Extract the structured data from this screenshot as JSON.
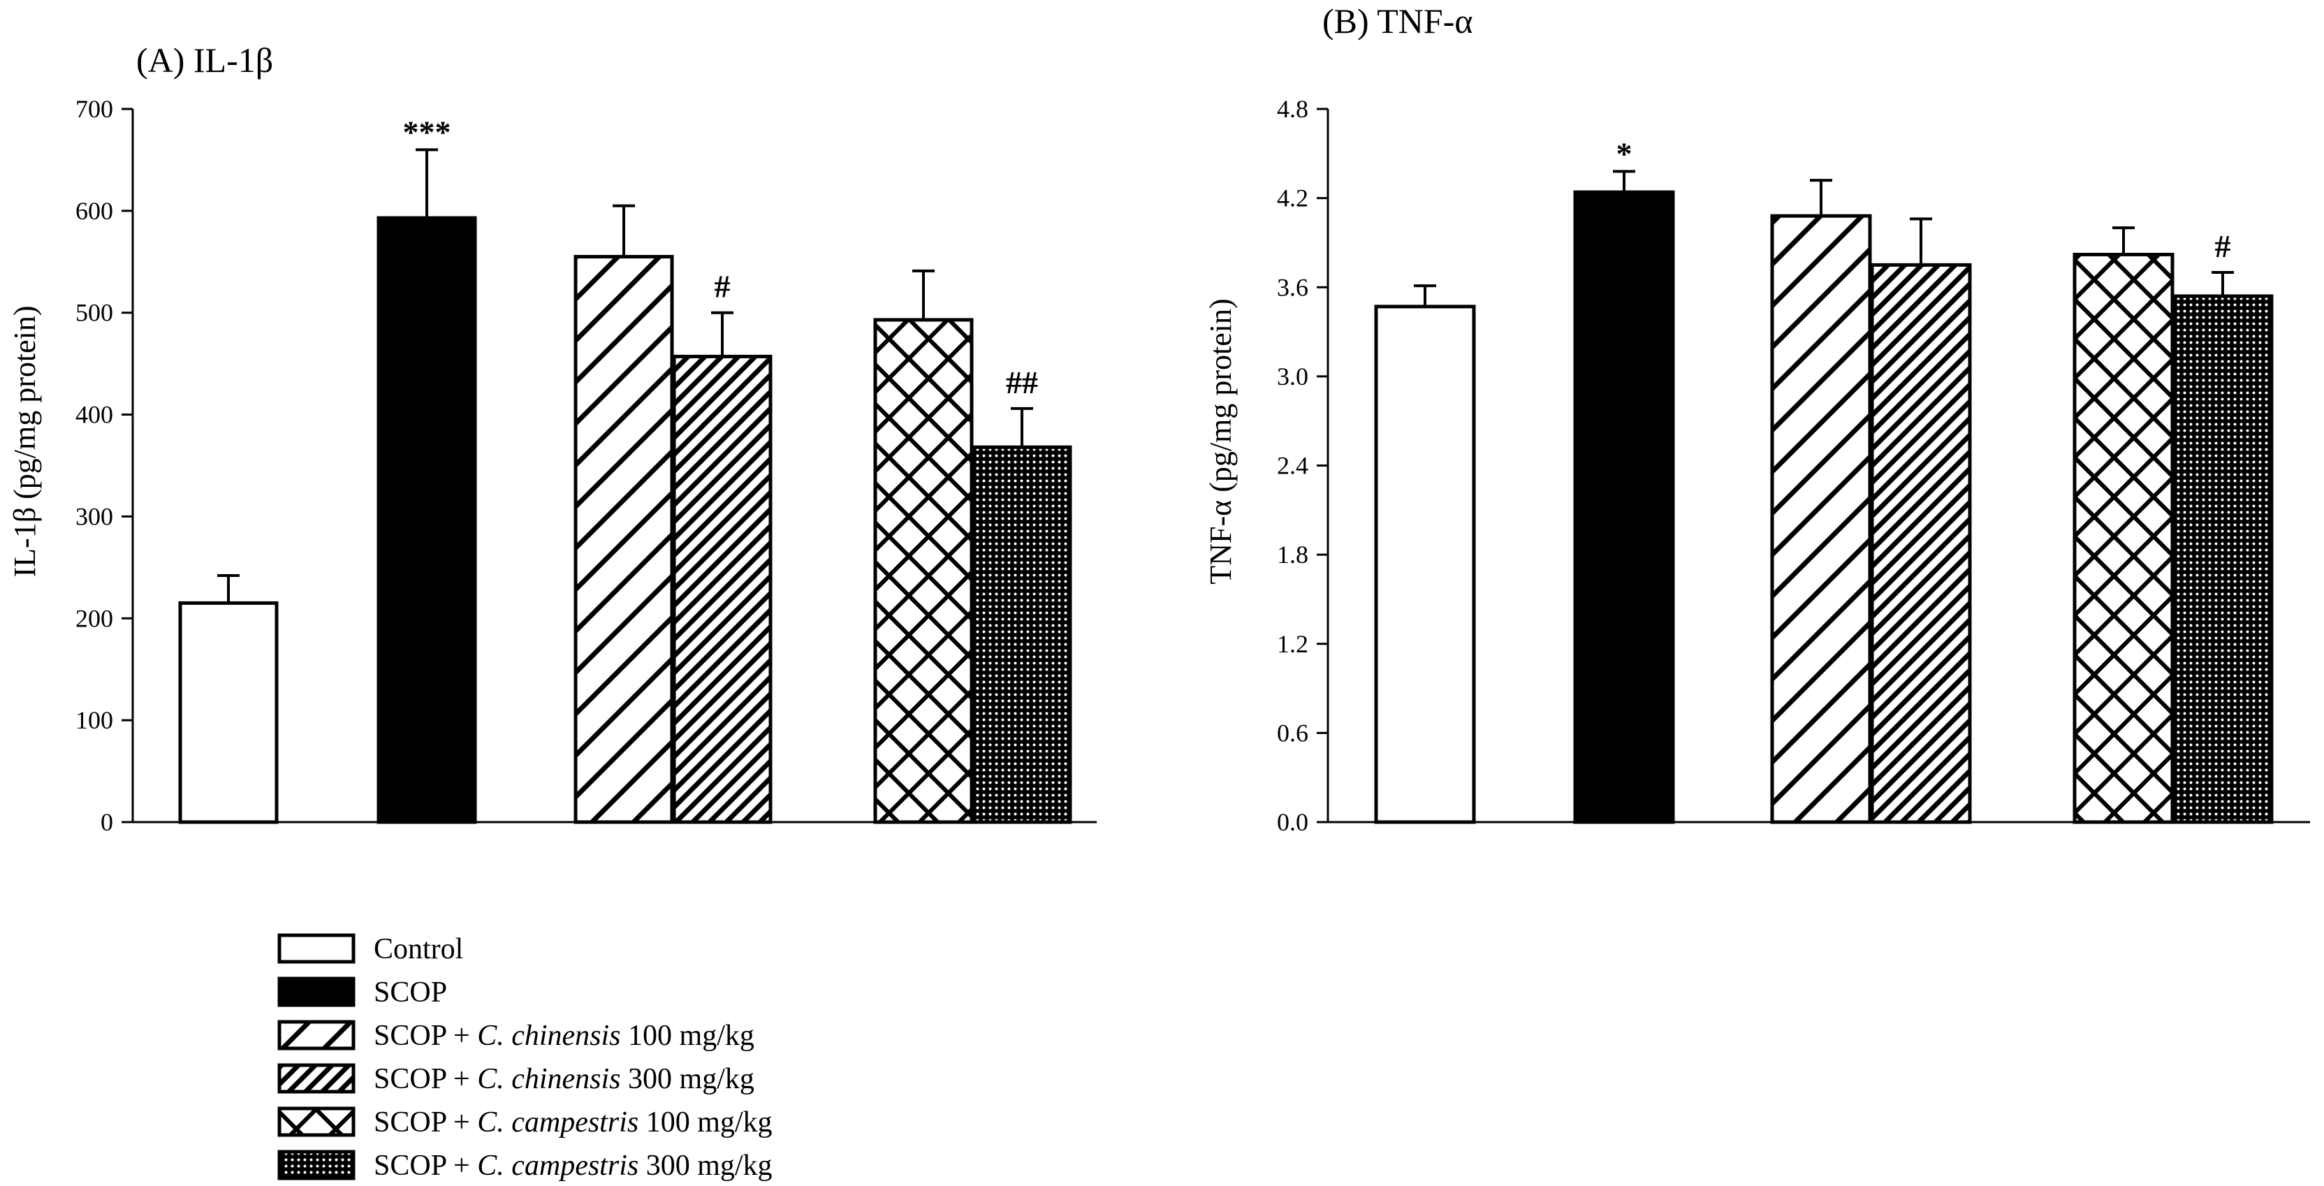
{
  "series_styles": [
    {
      "id": "control",
      "fill": "white"
    },
    {
      "id": "scop",
      "fill": "black"
    },
    {
      "id": "chin100",
      "fill": "diag-wide"
    },
    {
      "id": "chin300",
      "fill": "diag-dense"
    },
    {
      "id": "camp100",
      "fill": "crosshatch"
    },
    {
      "id": "camp300",
      "fill": "dots"
    }
  ],
  "legend": [
    {
      "pre": "Control",
      "italic": "",
      "post": ""
    },
    {
      "pre": "SCOP",
      "italic": "",
      "post": ""
    },
    {
      "pre": "SCOP + ",
      "italic": "C. chinensis",
      "post": " 100 mg/kg"
    },
    {
      "pre": "SCOP + ",
      "italic": "C. chinensis",
      "post": " 300 mg/kg"
    },
    {
      "pre": "SCOP + ",
      "italic": "C. campestris",
      "post": " 100 mg/kg"
    },
    {
      "pre": "SCOP + ",
      "italic": "C. campestris",
      "post": " 300 mg/kg"
    }
  ],
  "chart_data": [
    {
      "type": "bar",
      "title": "(A) IL-1β",
      "xlabel": "",
      "ylabel": "IL-1β (pg/mg protein)",
      "ylim": [
        0,
        700
      ],
      "yticks": [
        "0",
        "100",
        "200",
        "300",
        "400",
        "500",
        "600",
        "700"
      ],
      "categories": [
        "Control",
        "SCOP",
        "SCOP + C. chinensis 100 mg/kg",
        "SCOP + C. chinensis 300 mg/kg",
        "SCOP + C. campestris 100 mg/kg",
        "SCOP + C. campestris 300 mg/kg"
      ],
      "values": [
        215,
        593,
        555,
        457,
        493,
        368
      ],
      "errors": [
        27,
        67,
        50,
        43,
        48,
        38
      ],
      "significance": [
        "",
        "***",
        "",
        "#",
        "",
        "##"
      ]
    },
    {
      "type": "bar",
      "title": "(B) TNF-α",
      "xlabel": "",
      "ylabel": "TNF-α (pg/mg protein)",
      "ylim": [
        0,
        4.8
      ],
      "yticks": [
        "0.0",
        "0.6",
        "1.2",
        "1.8",
        "2.4",
        "3.0",
        "3.6",
        "4.2",
        "4.8"
      ],
      "categories": [
        "Control",
        "SCOP",
        "SCOP + C. chinensis 100 mg/kg",
        "SCOP + C. chinensis 300 mg/kg",
        "SCOP + C. campestris 100 mg/kg",
        "SCOP + C. campestris 300 mg/kg"
      ],
      "values": [
        3.47,
        4.24,
        4.08,
        3.75,
        3.82,
        3.54
      ],
      "errors": [
        0.14,
        0.14,
        0.24,
        0.31,
        0.18,
        0.16
      ],
      "significance": [
        "",
        "*",
        "",
        "",
        "",
        "#"
      ]
    }
  ]
}
